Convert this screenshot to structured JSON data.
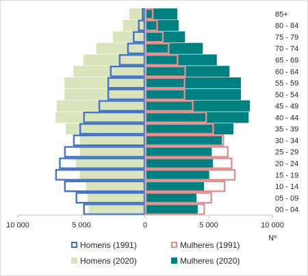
{
  "chart_data": {
    "type": "bar",
    "orientation": "horizontal-pyramid",
    "categories": [
      "00 - 04",
      "05 - 09",
      "10 - 14",
      "15 - 19",
      "20 - 24",
      "25 - 29",
      "30 - 34",
      "35 - 39",
      "40 - 44",
      "45 - 49",
      "50 - 54",
      "55 - 59",
      "60 - 64",
      "65 - 69",
      "70 - 74",
      "75 - 79",
      "80 - 84",
      "85+"
    ],
    "series": [
      {
        "name": "Homens (1991)",
        "side": "left",
        "style": "outline",
        "color": "#4472c4",
        "values": [
          4850,
          5450,
          6350,
          7050,
          6750,
          6350,
          5650,
          5150,
          4850,
          3650,
          2950,
          2950,
          2750,
          2050,
          1400,
          950,
          550,
          250
        ]
      },
      {
        "name": "Mulheres (1991)",
        "side": "right",
        "style": "outline",
        "color": "#e0908e",
        "values": [
          4700,
          5250,
          6300,
          7100,
          6850,
          6550,
          6200,
          5400,
          4850,
          3800,
          3150,
          3150,
          3200,
          2600,
          1900,
          1450,
          1000,
          650
        ]
      },
      {
        "name": "Homens (2020)",
        "side": "left",
        "style": "fill",
        "color": "#d8e4bc",
        "values": [
          4450,
          4550,
          4650,
          5150,
          5450,
          5150,
          5150,
          6250,
          7050,
          6950,
          6350,
          6350,
          5650,
          4850,
          3850,
          2550,
          1750,
          1250
        ]
      },
      {
        "name": "Mulheres (2020)",
        "side": "right",
        "style": "fill",
        "color": "#008080",
        "values": [
          4150,
          4050,
          4650,
          5050,
          5350,
          5250,
          6050,
          6950,
          8150,
          8250,
          7550,
          7550,
          6650,
          5650,
          4550,
          3150,
          2650,
          2550
        ]
      }
    ],
    "xlim": [
      -10000,
      10000
    ],
    "xticks": [
      "10 000",
      "5 000",
      "0",
      "5 000",
      "10 000"
    ],
    "xlabel": "Nº",
    "legend_position": "bottom",
    "grid": false
  },
  "legend": {
    "items": [
      "Homens (1991)",
      "Mulheres (1991)",
      "Homens (2020)",
      "Mulheres (2020)"
    ]
  }
}
